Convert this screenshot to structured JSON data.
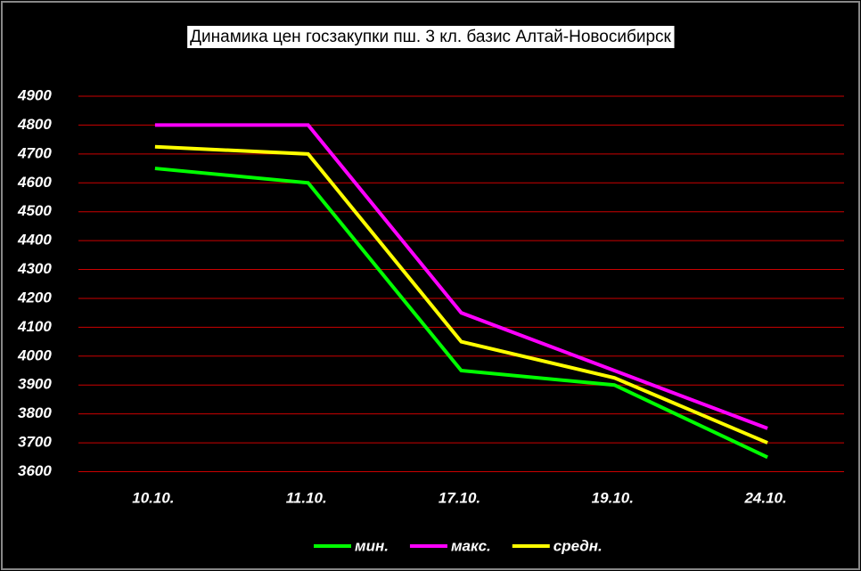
{
  "chart_data": {
    "type": "line",
    "title": "Динамика цен госзакупки пш. 3 кл. базис Алтай-Новосибирск",
    "categories": [
      "10.10.",
      "11.10.",
      "17.10.",
      "19.10.",
      "24.10."
    ],
    "series": [
      {
        "name": "мин.",
        "color": "#00ff00",
        "values": [
          4650,
          4600,
          3950,
          3900,
          3650
        ]
      },
      {
        "name": "макс.",
        "color": "#ff00ff",
        "values": [
          4800,
          4800,
          4150,
          3950,
          3750
        ]
      },
      {
        "name": "средн.",
        "color": "#ffff00",
        "values": [
          4725,
          4700,
          4050,
          3925,
          3700
        ]
      }
    ],
    "ylim": [
      3600,
      4900
    ],
    "yticks": [
      3600,
      3700,
      3800,
      3900,
      4000,
      4100,
      4200,
      4300,
      4400,
      4500,
      4600,
      4700,
      4800,
      4900
    ],
    "grid": true,
    "grid_color": "#cc0000",
    "legend": "bottom"
  }
}
